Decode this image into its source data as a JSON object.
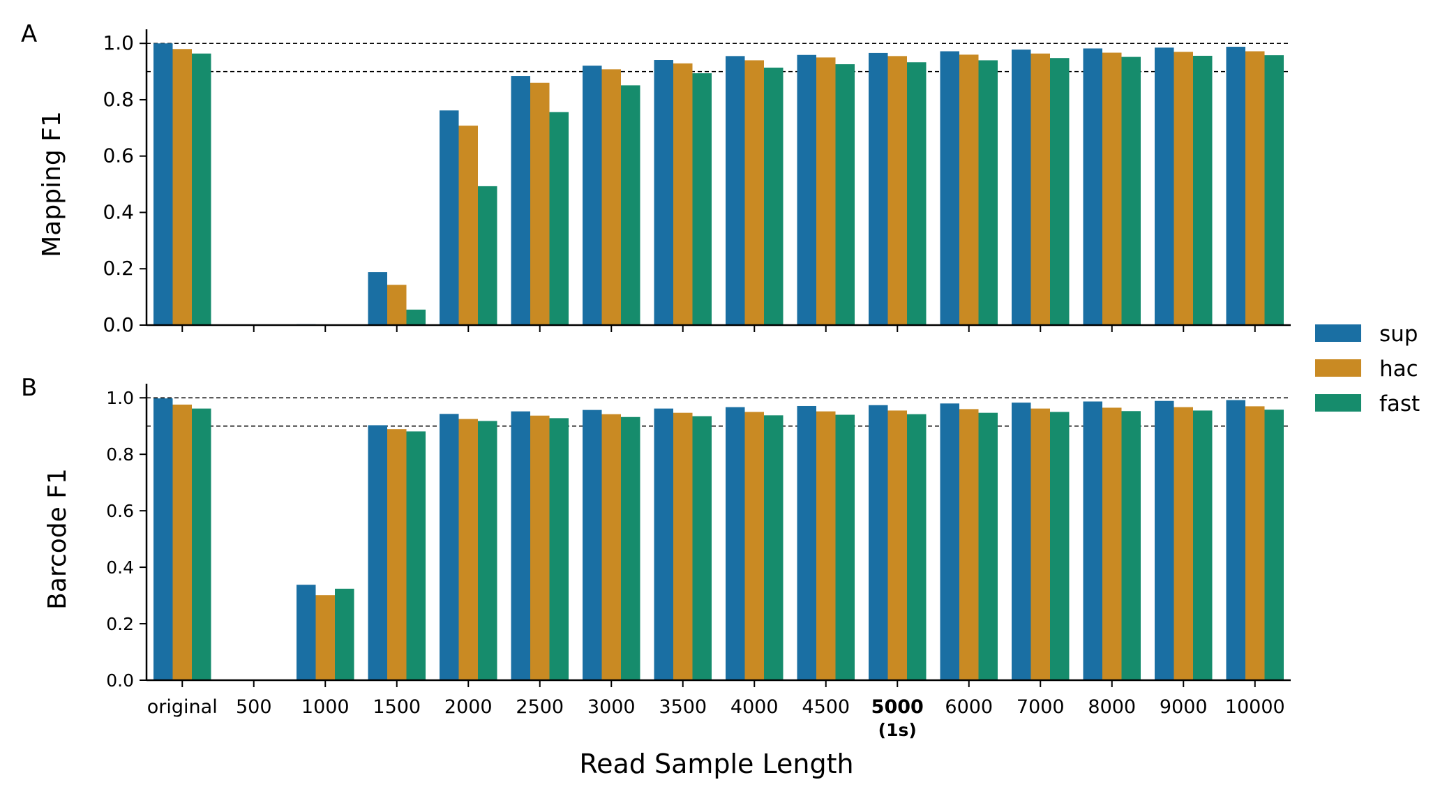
{
  "colors": {
    "sup": "#1a6fa3",
    "hac": "#c98a23",
    "fast": "#168c6c"
  },
  "legend": {
    "placement": "right",
    "items": [
      {
        "label": "sup",
        "color": "#1a6fa3"
      },
      {
        "label": "hac",
        "color": "#c98a23"
      },
      {
        "label": "fast",
        "color": "#168c6c"
      }
    ]
  },
  "xlabel": "Read Sample Length",
  "x_tick_labels": [
    "original",
    "500",
    "1000",
    "1500",
    "2000",
    "2500",
    "3000",
    "3500",
    "4000",
    "4500",
    "5000",
    "6000",
    "7000",
    "8000",
    "9000",
    "10000"
  ],
  "x_tick_sublabel": {
    "index": 10,
    "bold_main": "5000",
    "sub": "(1s)"
  },
  "chart_data": [
    {
      "type": "bar",
      "panel_label": "A",
      "ylabel": "Mapping F1",
      "ylim": [
        0,
        1.05
      ],
      "yticks": [
        "0.0",
        "0.2",
        "0.4",
        "0.6",
        "0.8",
        "1.0"
      ],
      "reference_lines": [
        1.0,
        0.9
      ],
      "categories": [
        "original",
        "500",
        "1000",
        "1500",
        "2000",
        "2500",
        "3000",
        "3500",
        "4000",
        "4500",
        "5000",
        "6000",
        "7000",
        "8000",
        "9000",
        "10000"
      ],
      "series": [
        {
          "name": "sup",
          "values": [
            1.0,
            0.0,
            0.003,
            0.188,
            0.762,
            0.884,
            0.921,
            0.941,
            0.955,
            0.959,
            0.966,
            0.972,
            0.978,
            0.982,
            0.985,
            0.988
          ]
        },
        {
          "name": "hac",
          "values": [
            0.98,
            0.0,
            0.0,
            0.143,
            0.708,
            0.86,
            0.908,
            0.929,
            0.94,
            0.95,
            0.955,
            0.96,
            0.964,
            0.967,
            0.97,
            0.972
          ]
        },
        {
          "name": "fast",
          "values": [
            0.964,
            0.0,
            0.0,
            0.055,
            0.493,
            0.756,
            0.851,
            0.894,
            0.914,
            0.926,
            0.933,
            0.94,
            0.948,
            0.952,
            0.956,
            0.958
          ]
        }
      ]
    },
    {
      "type": "bar",
      "panel_label": "B",
      "ylabel": "Barcode F1",
      "ylim": [
        0,
        1.05
      ],
      "yticks": [
        "0.0",
        "0.2",
        "0.4",
        "0.6",
        "0.8",
        "1.0"
      ],
      "reference_lines": [
        1.0,
        0.9
      ],
      "categories": [
        "original",
        "500",
        "1000",
        "1500",
        "2000",
        "2500",
        "3000",
        "3500",
        "4000",
        "4500",
        "5000",
        "6000",
        "7000",
        "8000",
        "9000",
        "10000"
      ],
      "series": [
        {
          "name": "sup",
          "values": [
            0.998,
            0.0,
            0.338,
            0.903,
            0.943,
            0.952,
            0.957,
            0.962,
            0.967,
            0.971,
            0.974,
            0.98,
            0.983,
            0.987,
            0.989,
            0.992
          ]
        },
        {
          "name": "hac",
          "values": [
            0.976,
            0.0,
            0.301,
            0.889,
            0.925,
            0.937,
            0.942,
            0.947,
            0.95,
            0.952,
            0.955,
            0.96,
            0.962,
            0.965,
            0.967,
            0.97
          ]
        },
        {
          "name": "fast",
          "values": [
            0.962,
            0.0,
            0.324,
            0.881,
            0.918,
            0.928,
            0.932,
            0.935,
            0.938,
            0.94,
            0.942,
            0.947,
            0.95,
            0.953,
            0.955,
            0.958
          ]
        }
      ]
    }
  ]
}
